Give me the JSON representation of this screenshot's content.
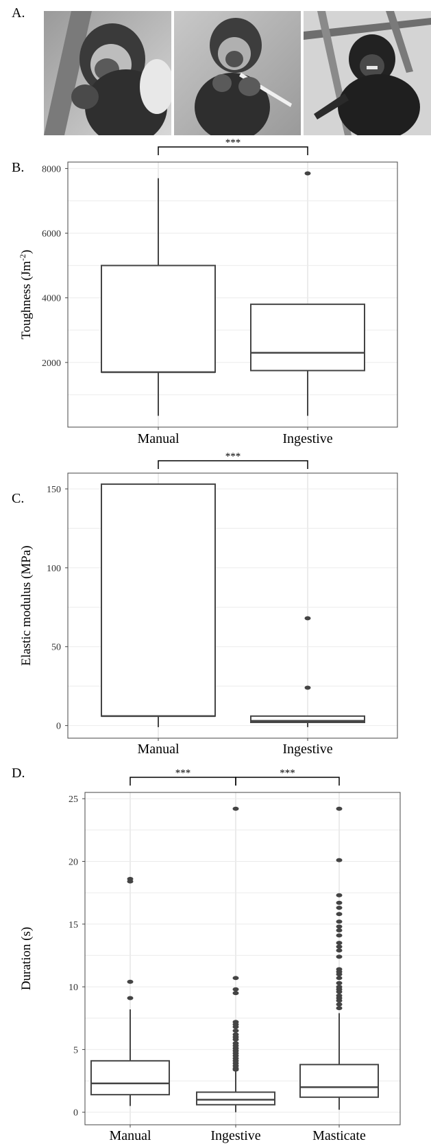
{
  "panels": {
    "a": "A.",
    "b": "B.",
    "c": "C.",
    "d": "D."
  },
  "photos": [
    {
      "name": "capuchin-photo-manual"
    },
    {
      "name": "capuchin-photo-ingestive"
    },
    {
      "name": "capuchin-photo-masticate"
    }
  ],
  "chart_data": [
    {
      "type": "boxplot",
      "panel": "B.",
      "xlabel": "",
      "ylabel": "Toughness (Jm",
      "ylabel_sup": "-2",
      "ylabel_close": ")",
      "ylim": [
        0,
        8200
      ],
      "yticks": [
        2000,
        4000,
        6000,
        8000
      ],
      "grid": true,
      "categories": [
        "Manual",
        "Ingestive"
      ],
      "boxes": [
        {
          "category": "Manual",
          "min": 350,
          "q1": 1700,
          "median": 1700,
          "q3": 5000,
          "max": 7700,
          "outliers": []
        },
        {
          "category": "Ingestive",
          "min": 350,
          "q1": 1750,
          "median": 2300,
          "q3": 3800,
          "max": 3800,
          "outliers": [
            7850
          ]
        }
      ],
      "significance": [
        {
          "from": "Manual",
          "to": "Ingestive",
          "label": "***"
        }
      ]
    },
    {
      "type": "boxplot",
      "panel": "C.",
      "xlabel": "",
      "ylabel": "Elastic modulus (MPa)",
      "ylim": [
        -8,
        160
      ],
      "yticks": [
        0,
        50,
        100,
        150
      ],
      "grid": true,
      "categories": [
        "Manual",
        "Ingestive"
      ],
      "boxes": [
        {
          "category": "Manual",
          "min": -1,
          "q1": 6,
          "median": 6,
          "q3": 153,
          "max": 153,
          "outliers": []
        },
        {
          "category": "Ingestive",
          "min": -1,
          "q1": 2,
          "median": 3,
          "q3": 6,
          "max": 6,
          "outliers": [
            68,
            24
          ]
        }
      ],
      "significance": [
        {
          "from": "Manual",
          "to": "Ingestive",
          "label": "***"
        }
      ]
    },
    {
      "type": "boxplot",
      "panel": "D.",
      "xlabel": "",
      "ylabel": "Duration (s)",
      "ylim": [
        -1,
        25.5
      ],
      "yticks": [
        0,
        5,
        10,
        15,
        20,
        25
      ],
      "grid": true,
      "categories": [
        "Manual",
        "Ingestive",
        "Masticate"
      ],
      "boxes": [
        {
          "category": "Manual",
          "min": 0.5,
          "q1": 1.4,
          "median": 2.3,
          "q3": 4.1,
          "max": 8.2,
          "outliers": [
            18.6,
            18.4,
            10.4,
            9.1
          ]
        },
        {
          "category": "Ingestive",
          "min": 0.0,
          "q1": 0.6,
          "median": 1.0,
          "q3": 1.6,
          "max": 3.3,
          "outliers": [
            24.2,
            10.7,
            9.8,
            9.5,
            7.2,
            7.0,
            6.8,
            6.5,
            6.2,
            6.0,
            5.8,
            5.5,
            5.3,
            5.1,
            4.9,
            4.7,
            4.5,
            4.3,
            4.1,
            3.9,
            3.7,
            3.5,
            3.4
          ]
        },
        {
          "category": "Masticate",
          "min": 0.2,
          "q1": 1.2,
          "median": 2.0,
          "q3": 3.8,
          "max": 7.9,
          "outliers": [
            24.2,
            20.1,
            17.3,
            16.7,
            16.3,
            15.8,
            15.2,
            14.8,
            14.5,
            14.1,
            13.5,
            13.2,
            12.9,
            12.4,
            11.4,
            11.2,
            11.0,
            10.7,
            10.3,
            10.0,
            9.8,
            9.6,
            9.3,
            9.1,
            8.9,
            8.6,
            8.3
          ]
        }
      ],
      "significance": [
        {
          "from": "Manual",
          "to": "Ingestive",
          "label": "***"
        },
        {
          "from": "Ingestive",
          "to": "Masticate",
          "label": "***"
        }
      ]
    }
  ]
}
